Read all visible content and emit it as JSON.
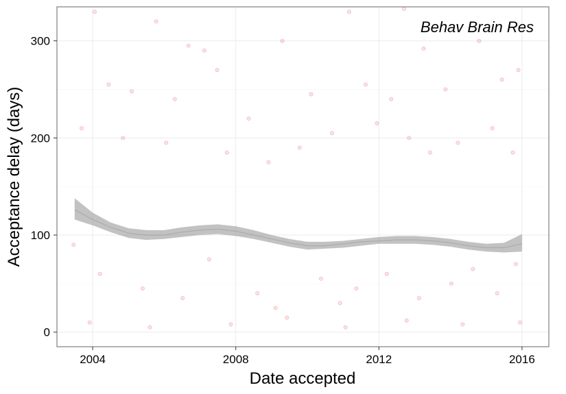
{
  "chart_data": {
    "type": "scatter",
    "title": "",
    "annotation": "Behav Brain Res",
    "xlabel": "Date accepted",
    "ylabel": "Acceptance delay (days)",
    "x_type": "date",
    "xlim": [
      "2003-01-01",
      "2016-10-01"
    ],
    "ylim": [
      -15,
      335
    ],
    "x_ticks": [
      {
        "value": "2004-01-01",
        "label": "2004"
      },
      {
        "value": "2008-01-01",
        "label": "2008"
      },
      {
        "value": "2012-01-01",
        "label": "2012"
      },
      {
        "value": "2016-01-01",
        "label": "2016"
      }
    ],
    "y_ticks": [
      {
        "value": 0,
        "label": "0"
      },
      {
        "value": 100,
        "label": "100"
      },
      {
        "value": 200,
        "label": "200"
      },
      {
        "value": 300,
        "label": "300"
      }
    ],
    "grid": true,
    "point_color": "#e8222a",
    "point_opacity": 0.12,
    "smooth_color": "#999999",
    "series": [
      {
        "type": "smooth",
        "points": [
          {
            "x": "2003-07-01",
            "y": 126,
            "lo": 116,
            "hi": 138
          },
          {
            "x": "2004-01-01",
            "y": 116,
            "lo": 110,
            "hi": 123
          },
          {
            "x": "2004-07-01",
            "y": 108,
            "lo": 103,
            "hi": 113
          },
          {
            "x": "2005-01-01",
            "y": 102,
            "lo": 97,
            "hi": 107
          },
          {
            "x": "2005-07-01",
            "y": 100,
            "lo": 95,
            "hi": 105
          },
          {
            "x": "2006-01-01",
            "y": 100,
            "lo": 96,
            "hi": 105
          },
          {
            "x": "2006-07-01",
            "y": 103,
            "lo": 98,
            "hi": 108
          },
          {
            "x": "2007-01-01",
            "y": 105,
            "lo": 100,
            "hi": 110
          },
          {
            "x": "2007-07-01",
            "y": 106,
            "lo": 101,
            "hi": 111
          },
          {
            "x": "2008-01-01",
            "y": 104,
            "lo": 99,
            "hi": 109
          },
          {
            "x": "2008-07-01",
            "y": 100,
            "lo": 96,
            "hi": 105
          },
          {
            "x": "2009-01-01",
            "y": 96,
            "lo": 92,
            "hi": 100
          },
          {
            "x": "2009-07-01",
            "y": 92,
            "lo": 88,
            "hi": 96
          },
          {
            "x": "2010-01-01",
            "y": 89,
            "lo": 85,
            "hi": 93
          },
          {
            "x": "2010-07-01",
            "y": 89,
            "lo": 86,
            "hi": 93
          },
          {
            "x": "2011-01-01",
            "y": 91,
            "lo": 87,
            "hi": 94
          },
          {
            "x": "2011-07-01",
            "y": 93,
            "lo": 89,
            "hi": 96
          },
          {
            "x": "2012-01-01",
            "y": 94,
            "lo": 91,
            "hi": 98
          },
          {
            "x": "2012-07-01",
            "y": 95,
            "lo": 91,
            "hi": 99
          },
          {
            "x": "2013-01-01",
            "y": 95,
            "lo": 91,
            "hi": 99
          },
          {
            "x": "2013-07-01",
            "y": 94,
            "lo": 90,
            "hi": 98
          },
          {
            "x": "2014-01-01",
            "y": 92,
            "lo": 88,
            "hi": 96
          },
          {
            "x": "2014-07-01",
            "y": 89,
            "lo": 85,
            "hi": 93
          },
          {
            "x": "2015-01-01",
            "y": 87,
            "lo": 83,
            "hi": 91
          },
          {
            "x": "2015-07-01",
            "y": 87,
            "lo": 82,
            "hi": 92
          },
          {
            "x": "2016-01-01",
            "y": 91,
            "lo": 83,
            "hi": 101
          }
        ]
      },
      {
        "type": "scatter",
        "points": [
          {
            "x": "2004-01-22",
            "y": 330
          },
          {
            "x": "2005-10-10",
            "y": 320
          },
          {
            "x": "2006-09-05",
            "y": 295
          },
          {
            "x": "2007-02-14",
            "y": 290
          },
          {
            "x": "2009-04-20",
            "y": 300
          },
          {
            "x": "2011-03-03",
            "y": 330
          },
          {
            "x": "2012-09-15",
            "y": 333
          },
          {
            "x": "2013-04-01",
            "y": 292
          },
          {
            "x": "2014-10-20",
            "y": 300
          },
          {
            "x": "2015-06-10",
            "y": 260
          },
          {
            "x": "2004-06-11",
            "y": 255
          },
          {
            "x": "2005-02-02",
            "y": 248
          },
          {
            "x": "2006-04-18",
            "y": 240
          },
          {
            "x": "2007-06-25",
            "y": 270
          },
          {
            "x": "2008-05-12",
            "y": 220
          },
          {
            "x": "2010-02-08",
            "y": 245
          },
          {
            "x": "2011-08-19",
            "y": 255
          },
          {
            "x": "2012-05-05",
            "y": 240
          },
          {
            "x": "2013-11-11",
            "y": 250
          },
          {
            "x": "2015-11-25",
            "y": 270
          },
          {
            "x": "2003-09-10",
            "y": 210
          },
          {
            "x": "2004-11-05",
            "y": 200
          },
          {
            "x": "2006-01-20",
            "y": 195
          },
          {
            "x": "2007-10-02",
            "y": 185
          },
          {
            "x": "2008-11-30",
            "y": 175
          },
          {
            "x": "2009-10-14",
            "y": 190
          },
          {
            "x": "2010-09-09",
            "y": 205
          },
          {
            "x": "2011-12-12",
            "y": 215
          },
          {
            "x": "2012-11-03",
            "y": 200
          },
          {
            "x": "2013-06-06",
            "y": 185
          },
          {
            "x": "2014-03-17",
            "y": 195
          },
          {
            "x": "2015-03-03",
            "y": 210
          },
          {
            "x": "2015-09-29",
            "y": 185
          },
          {
            "x": "2003-06-20",
            "y": 90
          },
          {
            "x": "2004-03-15",
            "y": 60
          },
          {
            "x": "2005-05-25",
            "y": 45
          },
          {
            "x": "2006-07-07",
            "y": 35
          },
          {
            "x": "2007-04-04",
            "y": 75
          },
          {
            "x": "2008-08-08",
            "y": 40
          },
          {
            "x": "2009-02-10",
            "y": 25
          },
          {
            "x": "2010-05-20",
            "y": 55
          },
          {
            "x": "2010-12-01",
            "y": 30
          },
          {
            "x": "2011-05-15",
            "y": 45
          },
          {
            "x": "2012-03-21",
            "y": 60
          },
          {
            "x": "2013-02-14",
            "y": 35
          },
          {
            "x": "2014-01-10",
            "y": 50
          },
          {
            "x": "2014-08-18",
            "y": 65
          },
          {
            "x": "2015-04-22",
            "y": 40
          },
          {
            "x": "2015-10-30",
            "y": 70
          },
          {
            "x": "2003-12-01",
            "y": 10
          },
          {
            "x": "2005-08-08",
            "y": 5
          },
          {
            "x": "2007-11-11",
            "y": 8
          },
          {
            "x": "2009-06-06",
            "y": 15
          },
          {
            "x": "2011-01-25",
            "y": 5
          },
          {
            "x": "2012-10-10",
            "y": 12
          },
          {
            "x": "2014-05-05",
            "y": 8
          },
          {
            "x": "2015-12-12",
            "y": 10
          }
        ]
      }
    ]
  }
}
